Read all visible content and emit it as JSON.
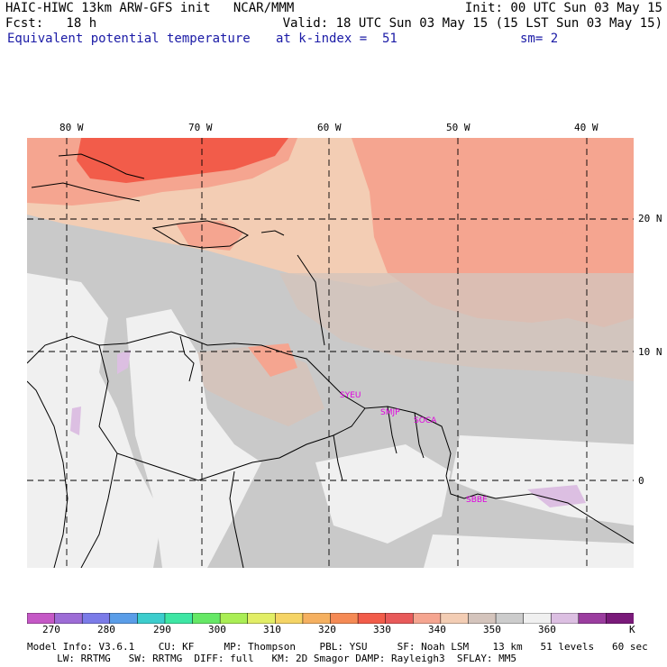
{
  "header": {
    "line1_left": "HAIC-HIWC 13km ARW-GFS init   NCAR/MMM",
    "line1_right": "Init: 00 UTC Sun 03 May 15",
    "line2_left": "Fcst:   18 h",
    "line2_right": "Valid: 18 UTC Sun 03 May 15 (15 LST Sun 03 May 15)",
    "field_name": "Equivalent potential temperature",
    "level": "at k-index =  51",
    "smoothing": "sm= 2"
  },
  "map": {
    "lon_labels": [
      "80 W",
      "70 W",
      "60 W",
      "50 W",
      "40 W"
    ],
    "lat_labels": [
      "20 N",
      "10 N",
      "0"
    ],
    "stations": [
      "SYEU",
      "SMJP",
      "SOCA",
      "SBBE"
    ]
  },
  "colorbar": {
    "unit": "K",
    "labels": [
      "270",
      "280",
      "290",
      "300",
      "310",
      "320",
      "330",
      "340",
      "350",
      "360"
    ],
    "colors": [
      "#c558c6",
      "#9d6cd6",
      "#7b7be8",
      "#5a9de8",
      "#3ccdcd",
      "#3ee6a4",
      "#66e866",
      "#aaee55",
      "#e2ee66",
      "#f5d465",
      "#f5b060",
      "#f58a55",
      "#f25c4a",
      "#e85a5a",
      "#f5a590",
      "#f3cdb4",
      "#d4c4bc",
      "#cccccc",
      "#f0f0f0",
      "#dcbfe2",
      "#9b3d9f",
      "#7a1a7a"
    ]
  },
  "footer": {
    "line1": "Model Info: V3.6.1    CU: KF     MP: Thompson    PBL: YSU     SF: Noah LSM    13 km   51 levels   60 sec",
    "line2": "     LW: RRTMG   SW: RRTMG  DIFF: full   KM: 2D Smagor DAMP: Rayleigh3  SFLAY: MM5"
  }
}
